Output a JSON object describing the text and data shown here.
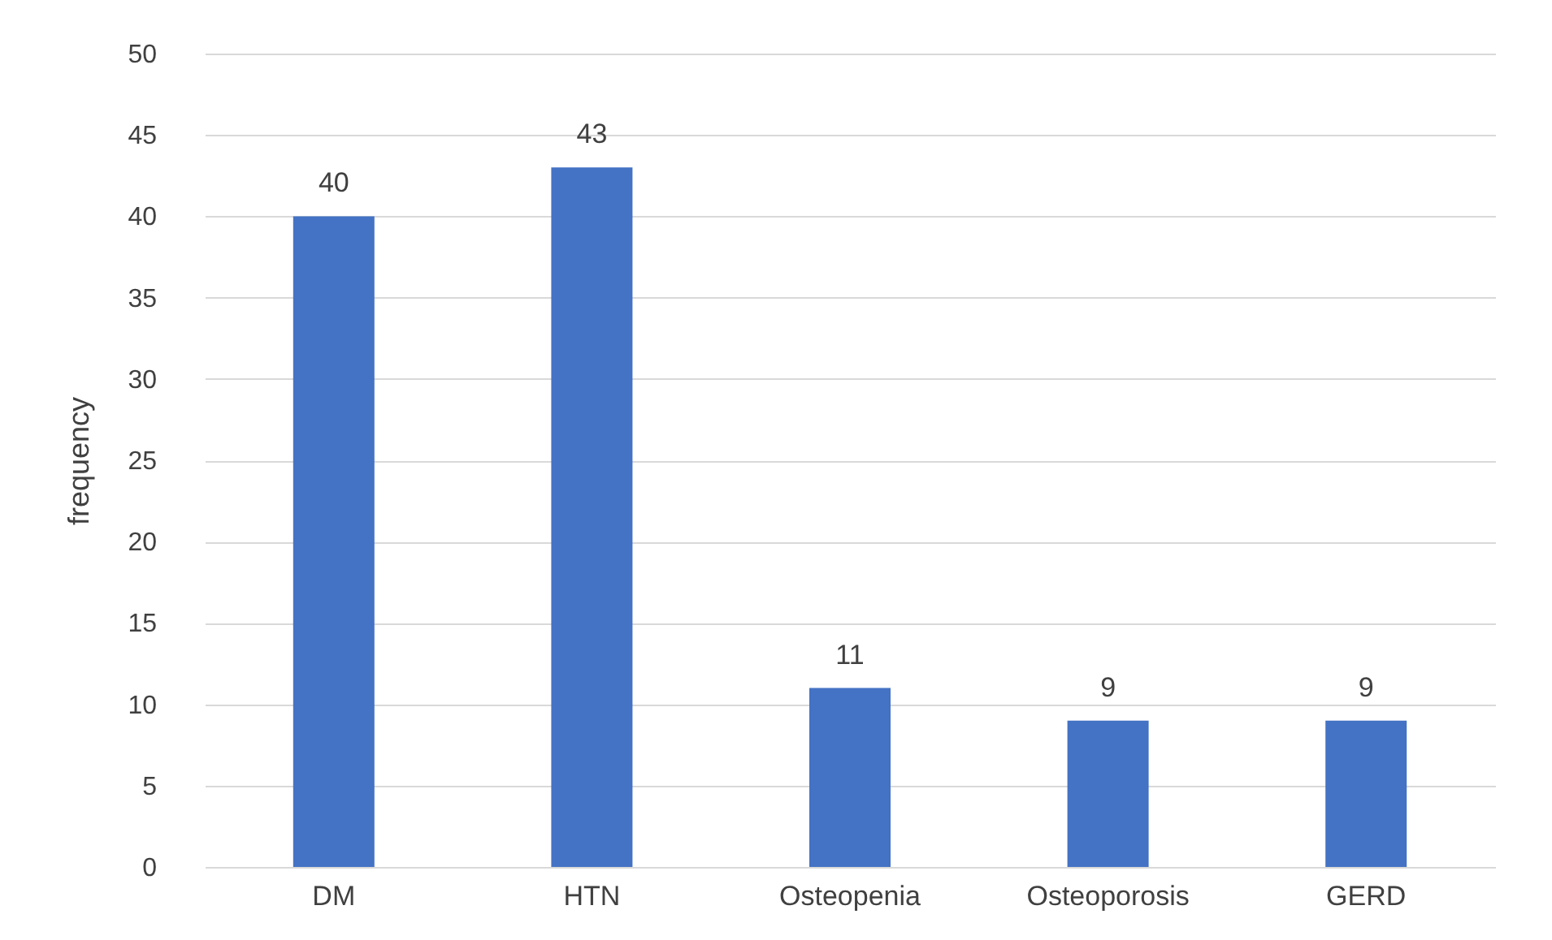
{
  "chart_data": {
    "type": "bar",
    "ylabel": "frequency",
    "categories": [
      "DM",
      "HTN",
      "Osteopenia",
      "Osteoporosis",
      "GERD"
    ],
    "values": [
      40,
      43,
      11,
      9,
      9
    ],
    "color": "#4472c4",
    "ylim": [
      0,
      50
    ],
    "yticks": [
      0,
      5,
      10,
      15,
      20,
      25,
      30,
      35,
      40,
      45,
      50
    ],
    "grid": "y",
    "data_labels": true
  }
}
